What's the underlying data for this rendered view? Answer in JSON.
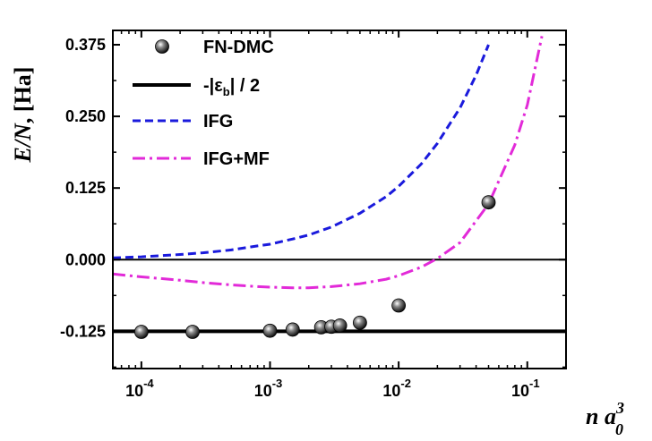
{
  "chart_data": {
    "type": "scatter",
    "xscale": "log",
    "xlim": [
      6e-05,
      0.2
    ],
    "ylim": [
      -0.19,
      0.4
    ],
    "xlabel": {
      "pre": "n a",
      "sup": "3",
      "sub": "0"
    },
    "ylabel": {
      "main": "E/N",
      "unit": ", [Ha]"
    },
    "xticks": [
      {
        "value": 0.0001,
        "base": "10",
        "exp": "-4"
      },
      {
        "value": 0.001,
        "base": "10",
        "exp": "-3"
      },
      {
        "value": 0.01,
        "base": "10",
        "exp": "-2"
      },
      {
        "value": 0.1,
        "base": "10",
        "exp": "-1"
      }
    ],
    "yticks": [
      {
        "value": -0.125,
        "label": "-0.125"
      },
      {
        "value": 0.0,
        "label": "0.000"
      },
      {
        "value": 0.125,
        "label": "0.125"
      },
      {
        "value": 0.25,
        "label": "0.250"
      },
      {
        "value": 0.375,
        "label": "0.375"
      }
    ],
    "legend_position": "top-left",
    "series": [
      {
        "name": "FN-DMC",
        "kind": "points",
        "color": "#111111",
        "x": [
          0.0001,
          0.00025,
          0.001,
          0.0015,
          0.0025,
          0.003,
          0.0035,
          0.005,
          0.01,
          0.05
        ],
        "y": [
          -0.126,
          -0.126,
          -0.124,
          -0.122,
          -0.118,
          -0.117,
          -0.115,
          -0.11,
          -0.08,
          0.1
        ]
      },
      {
        "name": "-|εb| / 2",
        "label_parts": {
          "pre": "-|ε",
          "sub": "b",
          "post": "| / 2"
        },
        "kind": "hline",
        "color": "#000000",
        "y": -0.125
      },
      {
        "name": "IFG",
        "kind": "line",
        "style": "dashed",
        "color": "#1a1adc",
        "x": [
          6e-05,
          0.0001,
          0.0002,
          0.0003,
          0.0005,
          0.0008,
          0.001,
          0.0015,
          0.002,
          0.003,
          0.005,
          0.008,
          0.01,
          0.015,
          0.02,
          0.03,
          0.04,
          0.05
        ],
        "y": [
          0.003,
          0.005,
          0.009,
          0.012,
          0.017,
          0.024,
          0.027,
          0.036,
          0.043,
          0.057,
          0.081,
          0.11,
          0.128,
          0.167,
          0.203,
          0.265,
          0.322,
          0.375
        ]
      },
      {
        "name": "IFG+MF",
        "kind": "line",
        "style": "dashdot",
        "color": "#e22ad8",
        "x": [
          6e-05,
          0.0001,
          0.0002,
          0.0003,
          0.0005,
          0.0008,
          0.001,
          0.0015,
          0.002,
          0.003,
          0.005,
          0.008,
          0.01,
          0.015,
          0.02,
          0.03,
          0.05,
          0.08,
          0.1,
          0.13
        ],
        "y": [
          -0.025,
          -0.03,
          -0.036,
          -0.04,
          -0.044,
          -0.047,
          -0.048,
          -0.049,
          -0.049,
          -0.047,
          -0.042,
          -0.034,
          -0.028,
          -0.013,
          0.002,
          0.03,
          0.097,
          0.2,
          0.27,
          0.39
        ]
      }
    ]
  }
}
